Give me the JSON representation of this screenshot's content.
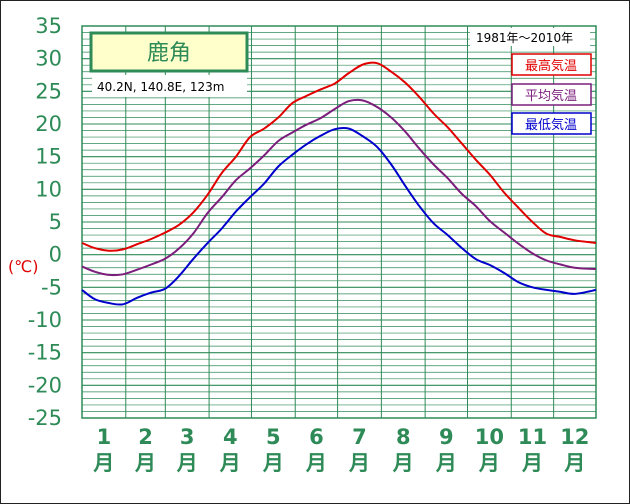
{
  "chart_data": {
    "type": "line",
    "title": "鹿角",
    "location": "40.2N,  140.8E,  123m",
    "period": "1981年〜2010年",
    "ylabel": "(℃)",
    "ylim": [
      -25,
      35
    ],
    "yticks": [
      35,
      30,
      25,
      20,
      15,
      10,
      5,
      0,
      -5,
      -10,
      -15,
      -20,
      -25
    ],
    "months": [
      "1",
      "2",
      "3",
      "4",
      "5",
      "6",
      "7",
      "8",
      "9",
      "10",
      "11",
      "12"
    ],
    "month_suffix": "月",
    "grid": true,
    "legend_position": "top-right",
    "x": [
      1,
      10,
      20,
      30,
      40,
      50,
      60,
      70,
      80,
      90,
      100,
      110,
      120,
      130,
      140,
      150,
      160,
      170,
      180,
      190,
      200,
      210,
      220,
      230,
      240,
      250,
      260,
      270,
      280,
      290,
      300,
      310,
      320,
      330,
      340,
      350,
      365
    ],
    "series": [
      {
        "name": "最高気温",
        "color": "#e00000",
        "values": [
          1.8,
          1.0,
          0.6,
          0.8,
          1.6,
          2.4,
          3.4,
          4.6,
          6.5,
          9.2,
          12.5,
          15.0,
          18.0,
          19.3,
          21.0,
          23.2,
          24.3,
          25.3,
          26.2,
          27.8,
          29.1,
          29.3,
          28.0,
          26.3,
          24.1,
          21.6,
          19.5,
          17.0,
          14.5,
          12.2,
          9.5,
          7.2,
          5.0,
          3.2,
          2.7,
          2.2,
          1.8
        ]
      },
      {
        "name": "平均気温",
        "color": "#7b1e7b",
        "values": [
          -1.8,
          -2.6,
          -3.1,
          -3.0,
          -2.3,
          -1.5,
          -0.6,
          1.0,
          3.3,
          6.4,
          8.8,
          11.4,
          13.2,
          15.2,
          17.4,
          18.7,
          19.9,
          20.9,
          22.3,
          23.5,
          23.6,
          22.6,
          21.0,
          18.8,
          16.2,
          13.8,
          11.7,
          9.3,
          7.4,
          5.1,
          3.4,
          1.7,
          0.2,
          -0.9,
          -1.5,
          -2.0,
          -2.2
        ]
      },
      {
        "name": "最低気温",
        "color": "#0000cc",
        "values": [
          -5.4,
          -6.8,
          -7.4,
          -7.6,
          -6.6,
          -5.8,
          -5.2,
          -3.2,
          -0.6,
          1.8,
          4.0,
          6.6,
          8.8,
          10.9,
          13.5,
          15.3,
          16.9,
          18.2,
          19.2,
          19.3,
          18.1,
          16.5,
          13.8,
          10.5,
          7.4,
          4.8,
          3.0,
          1.0,
          -0.7,
          -1.6,
          -2.8,
          -4.2,
          -5.0,
          -5.4,
          -5.7,
          -6.0,
          -5.4
        ]
      }
    ]
  }
}
